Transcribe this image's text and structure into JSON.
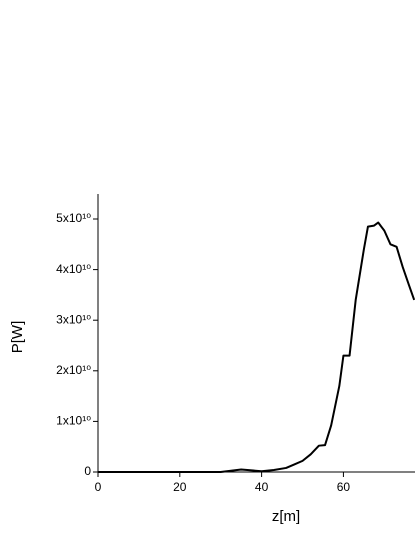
{
  "chart_data": {
    "type": "line",
    "x_label": "z[m]",
    "y_label": "P[W]",
    "x": [
      0,
      20,
      30,
      35,
      40,
      43,
      46,
      48,
      50,
      52,
      54,
      55.5,
      57,
      59,
      60,
      61.5,
      63,
      65,
      66,
      67.5,
      68.5,
      70,
      71.5,
      73,
      74.5,
      76,
      77.3
    ],
    "series": [
      {
        "color": "#000000",
        "values": [
          0,
          0,
          0,
          500000000.0,
          150000000,
          400000000,
          800000000,
          1500000000,
          2200000000,
          3500000000,
          5200000000,
          5300000000,
          9200000000,
          17000000000,
          23000000000,
          23000000000,
          34000000000,
          44000000000,
          48500000000,
          48700000000,
          49300000000,
          47700000000,
          45000000000,
          44500000000,
          40500000000,
          37000000000,
          34000000000
        ]
      }
    ],
    "xlim": [
      0,
      77.5
    ],
    "ylim": [
      0,
      55000000000
    ],
    "xticks": [
      0,
      20,
      40,
      60
    ],
    "yticks": [
      0,
      {
        "value": 10000000000,
        "label": "1x10¹⁰"
      },
      {
        "value": 20000000000,
        "label": "2x10¹⁰"
      },
      {
        "value": 30000000000,
        "label": "3x10¹⁰"
      },
      {
        "value": 40000000000,
        "label": "4x10¹⁰"
      },
      {
        "value": 50000000000,
        "label": "5x10¹⁰"
      }
    ]
  }
}
